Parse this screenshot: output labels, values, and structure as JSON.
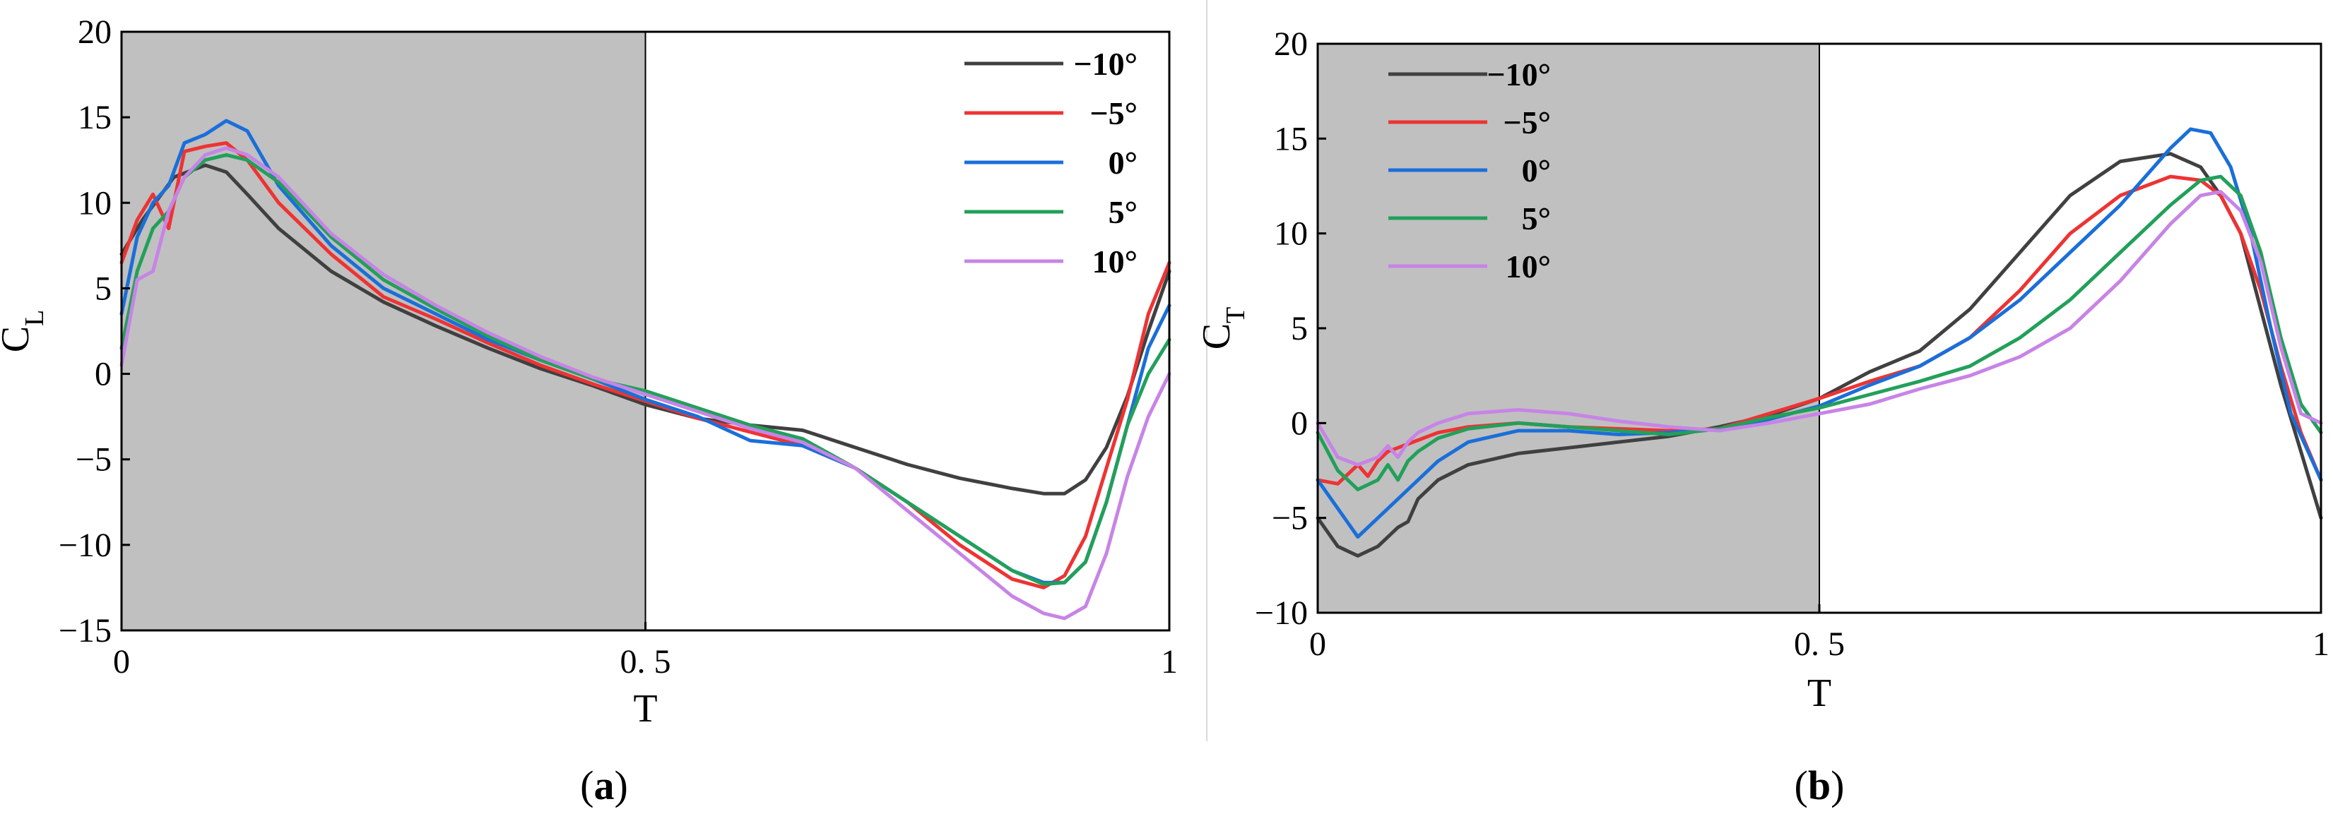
{
  "colors": {
    "neg10": "#404040",
    "neg5": "#ee3333",
    "zero": "#1a6fd9",
    "pos5": "#22a05a",
    "pos10": "#c784e6",
    "shade": "#c0c0c0",
    "divider": "#d9d9d9"
  },
  "chart_data": [
    {
      "type": "line",
      "panel": "a",
      "caption_letter": "a",
      "caption_open": "(",
      "caption_close": ")",
      "xlabel": "T",
      "ylabel_main": "C",
      "ylabel_sub": "L",
      "xlim": [
        0,
        1
      ],
      "ylim": [
        -15,
        20
      ],
      "xticks": [
        0,
        0.5,
        1
      ],
      "xtick_labels": [
        "0",
        "0. 5",
        "1"
      ],
      "yticks": [
        -15,
        -10,
        -5,
        0,
        5,
        10,
        15,
        20
      ],
      "ytick_labels": [
        "−15",
        "−10",
        "−5",
        "0",
        "5",
        "10",
        "15",
        "20"
      ],
      "shaded_region": [
        0,
        0.5
      ],
      "legend_position": "top-right",
      "series": [
        {
          "name": "−10°",
          "color_key": "neg10",
          "x": [
            0,
            0.02,
            0.05,
            0.08,
            0.1,
            0.12,
            0.15,
            0.2,
            0.25,
            0.3,
            0.35,
            0.4,
            0.45,
            0.5,
            0.55,
            0.6,
            0.65,
            0.7,
            0.75,
            0.8,
            0.85,
            0.88,
            0.9,
            0.92,
            0.94,
            0.96,
            0.98,
            1.0
          ],
          "y": [
            7,
            9,
            11.5,
            12.2,
            11.8,
            10.5,
            8.5,
            6,
            4.2,
            2.8,
            1.5,
            0.3,
            -0.7,
            -1.8,
            -2.6,
            -3.0,
            -3.3,
            -4.3,
            -5.3,
            -6.1,
            -6.7,
            -7.0,
            -7.0,
            -6.2,
            -4.3,
            -1.3,
            2.5,
            6
          ]
        },
        {
          "name": "−5°",
          "color_key": "neg5",
          "x": [
            0,
            0.015,
            0.03,
            0.045,
            0.06,
            0.08,
            0.1,
            0.12,
            0.15,
            0.2,
            0.25,
            0.3,
            0.35,
            0.4,
            0.45,
            0.5,
            0.55,
            0.6,
            0.65,
            0.7,
            0.75,
            0.8,
            0.85,
            0.88,
            0.9,
            0.92,
            0.94,
            0.96,
            0.98,
            1.0
          ],
          "y": [
            6.5,
            9,
            10.5,
            8.5,
            13,
            13.3,
            13.5,
            12.5,
            10,
            7,
            4.5,
            3.2,
            1.8,
            0.5,
            -0.6,
            -1.6,
            -2.6,
            -3.4,
            -4.2,
            -5.5,
            -7.5,
            -10,
            -12,
            -12.5,
            -11.8,
            -9.5,
            -5.5,
            -1.5,
            3.5,
            6.5
          ]
        },
        {
          "name": "0°",
          "color_key": "zero",
          "x": [
            0,
            0.015,
            0.03,
            0.045,
            0.06,
            0.08,
            0.1,
            0.12,
            0.15,
            0.2,
            0.25,
            0.3,
            0.35,
            0.4,
            0.45,
            0.5,
            0.55,
            0.6,
            0.65,
            0.7,
            0.75,
            0.8,
            0.85,
            0.88,
            0.9,
            0.92,
            0.94,
            0.96,
            0.98,
            1.0
          ],
          "y": [
            3.5,
            8,
            10,
            11,
            13.5,
            14,
            14.8,
            14.2,
            11,
            7.5,
            5,
            3.5,
            2,
            0.8,
            -0.3,
            -1.5,
            -2.5,
            -3.9,
            -4.2,
            -5.5,
            -7.5,
            -9.5,
            -11.5,
            -12.2,
            -12.2,
            -11,
            -7.5,
            -3,
            1.5,
            4
          ]
        },
        {
          "name": "5°",
          "color_key": "pos5",
          "x": [
            0,
            0.015,
            0.03,
            0.045,
            0.06,
            0.08,
            0.1,
            0.12,
            0.15,
            0.2,
            0.25,
            0.3,
            0.35,
            0.4,
            0.45,
            0.5,
            0.55,
            0.6,
            0.65,
            0.7,
            0.75,
            0.8,
            0.85,
            0.88,
            0.9,
            0.92,
            0.94,
            0.96,
            0.98,
            1.0
          ],
          "y": [
            1.5,
            6,
            8.5,
            9.5,
            11.5,
            12.5,
            12.8,
            12.5,
            11.2,
            8,
            5.5,
            3.8,
            2.2,
            0.8,
            -0.3,
            -1,
            -2,
            -3,
            -3.8,
            -5.5,
            -7.5,
            -9.5,
            -11.5,
            -12.3,
            -12.2,
            -11,
            -7.5,
            -3,
            0,
            2
          ]
        },
        {
          "name": "10°",
          "color_key": "pos10",
          "x": [
            0,
            0.015,
            0.03,
            0.045,
            0.06,
            0.08,
            0.1,
            0.12,
            0.15,
            0.2,
            0.25,
            0.3,
            0.35,
            0.4,
            0.45,
            0.5,
            0.55,
            0.6,
            0.65,
            0.7,
            0.75,
            0.8,
            0.85,
            0.88,
            0.9,
            0.92,
            0.94,
            0.96,
            0.98,
            1.0
          ],
          "y": [
            0.5,
            5.5,
            6,
            9.5,
            11.5,
            12.8,
            13.2,
            12.8,
            11.5,
            8.2,
            5.8,
            4,
            2.4,
            1,
            -0.2,
            -1.2,
            -2.2,
            -3.2,
            -4,
            -5.5,
            -8,
            -10.5,
            -13,
            -14,
            -14.3,
            -13.6,
            -10.5,
            -6,
            -2.5,
            0
          ]
        }
      ]
    },
    {
      "type": "line",
      "panel": "b",
      "caption_letter": "b",
      "caption_open": "(",
      "caption_close": ")",
      "xlabel": "T",
      "ylabel_main": "C",
      "ylabel_sub": "T",
      "xlim": [
        0,
        1
      ],
      "ylim": [
        -10,
        20
      ],
      "xticks": [
        0,
        0.5,
        1
      ],
      "xtick_labels": [
        "0",
        "0. 5",
        "1"
      ],
      "yticks": [
        -10,
        -5,
        0,
        5,
        10,
        15,
        20
      ],
      "ytick_labels": [
        "−10",
        "−5",
        "0",
        "5",
        "10",
        "15",
        "20"
      ],
      "shaded_region": [
        0,
        0.5
      ],
      "legend_position": "top-left",
      "series": [
        {
          "name": "−10°",
          "color_key": "neg10",
          "x": [
            0,
            0.02,
            0.04,
            0.06,
            0.08,
            0.09,
            0.1,
            0.12,
            0.15,
            0.2,
            0.25,
            0.3,
            0.35,
            0.4,
            0.45,
            0.5,
            0.55,
            0.6,
            0.65,
            0.7,
            0.75,
            0.8,
            0.85,
            0.88,
            0.9,
            0.92,
            0.94,
            0.96,
            0.98,
            1.0
          ],
          "y": [
            -5,
            -6.5,
            -7,
            -6.5,
            -5.5,
            -5.2,
            -4,
            -3,
            -2.2,
            -1.6,
            -1.3,
            -1,
            -0.7,
            -0.2,
            0.4,
            1.3,
            2.7,
            3.8,
            6,
            9,
            12,
            13.8,
            14.2,
            13.5,
            12,
            10,
            6,
            2,
            -1.5,
            -5
          ]
        },
        {
          "name": "−5°",
          "color_key": "neg5",
          "x": [
            0,
            0.02,
            0.04,
            0.05,
            0.06,
            0.07,
            0.08,
            0.1,
            0.12,
            0.15,
            0.2,
            0.25,
            0.3,
            0.35,
            0.4,
            0.45,
            0.5,
            0.55,
            0.6,
            0.65,
            0.7,
            0.75,
            0.8,
            0.85,
            0.88,
            0.9,
            0.92,
            0.94,
            0.96,
            0.98,
            1.0
          ],
          "y": [
            -3,
            -3.2,
            -2.2,
            -2.8,
            -2,
            -1.5,
            -1.3,
            -0.9,
            -0.5,
            -0.2,
            0,
            -0.2,
            -0.3,
            -0.4,
            -0.3,
            0.5,
            1.3,
            2.2,
            3,
            4.5,
            7,
            10,
            12,
            13,
            12.8,
            12,
            10,
            7,
            3,
            -0.5,
            -3
          ]
        },
        {
          "name": "0°",
          "color_key": "zero",
          "x": [
            0,
            0.02,
            0.04,
            0.06,
            0.08,
            0.1,
            0.12,
            0.15,
            0.2,
            0.25,
            0.3,
            0.35,
            0.4,
            0.45,
            0.5,
            0.55,
            0.6,
            0.65,
            0.7,
            0.75,
            0.8,
            0.85,
            0.87,
            0.89,
            0.91,
            0.93,
            0.95,
            0.97,
            1.0
          ],
          "y": [
            -3,
            -4.5,
            -6,
            -5,
            -4,
            -3,
            -2,
            -1,
            -0.4,
            -0.4,
            -0.6,
            -0.5,
            -0.3,
            0.2,
            0.9,
            2,
            3,
            4.5,
            6.5,
            9,
            11.5,
            14.5,
            15.5,
            15.3,
            13.5,
            10,
            5,
            0.5,
            -3
          ]
        },
        {
          "name": "5°",
          "color_key": "pos5",
          "x": [
            0,
            0.02,
            0.04,
            0.06,
            0.07,
            0.08,
            0.09,
            0.1,
            0.12,
            0.15,
            0.2,
            0.25,
            0.3,
            0.35,
            0.4,
            0.45,
            0.5,
            0.55,
            0.6,
            0.65,
            0.7,
            0.75,
            0.8,
            0.85,
            0.88,
            0.9,
            0.92,
            0.94,
            0.96,
            0.98,
            1.0
          ],
          "y": [
            -0.5,
            -2.5,
            -3.5,
            -3,
            -2.2,
            -3,
            -2,
            -1.5,
            -0.8,
            -0.3,
            0,
            -0.2,
            -0.4,
            -0.6,
            -0.3,
            0.3,
            0.8,
            1.5,
            2.2,
            3,
            4.5,
            6.5,
            9,
            11.5,
            12.8,
            13,
            12,
            9,
            4.5,
            1,
            -0.5
          ]
        },
        {
          "name": "10°",
          "color_key": "pos10",
          "x": [
            0,
            0.02,
            0.04,
            0.06,
            0.07,
            0.08,
            0.09,
            0.1,
            0.12,
            0.15,
            0.2,
            0.25,
            0.3,
            0.35,
            0.4,
            0.45,
            0.5,
            0.55,
            0.6,
            0.65,
            0.7,
            0.75,
            0.8,
            0.85,
            0.88,
            0.9,
            0.92,
            0.94,
            0.96,
            0.98,
            1.0
          ],
          "y": [
            0,
            -1.8,
            -2.2,
            -1.8,
            -1.2,
            -1.8,
            -1,
            -0.5,
            0,
            0.5,
            0.7,
            0.5,
            0.1,
            -0.2,
            -0.4,
            0,
            0.5,
            1,
            1.8,
            2.5,
            3.5,
            5,
            7.5,
            10.5,
            12,
            12.2,
            11.2,
            8.5,
            4,
            0.5,
            0
          ]
        }
      ]
    }
  ]
}
